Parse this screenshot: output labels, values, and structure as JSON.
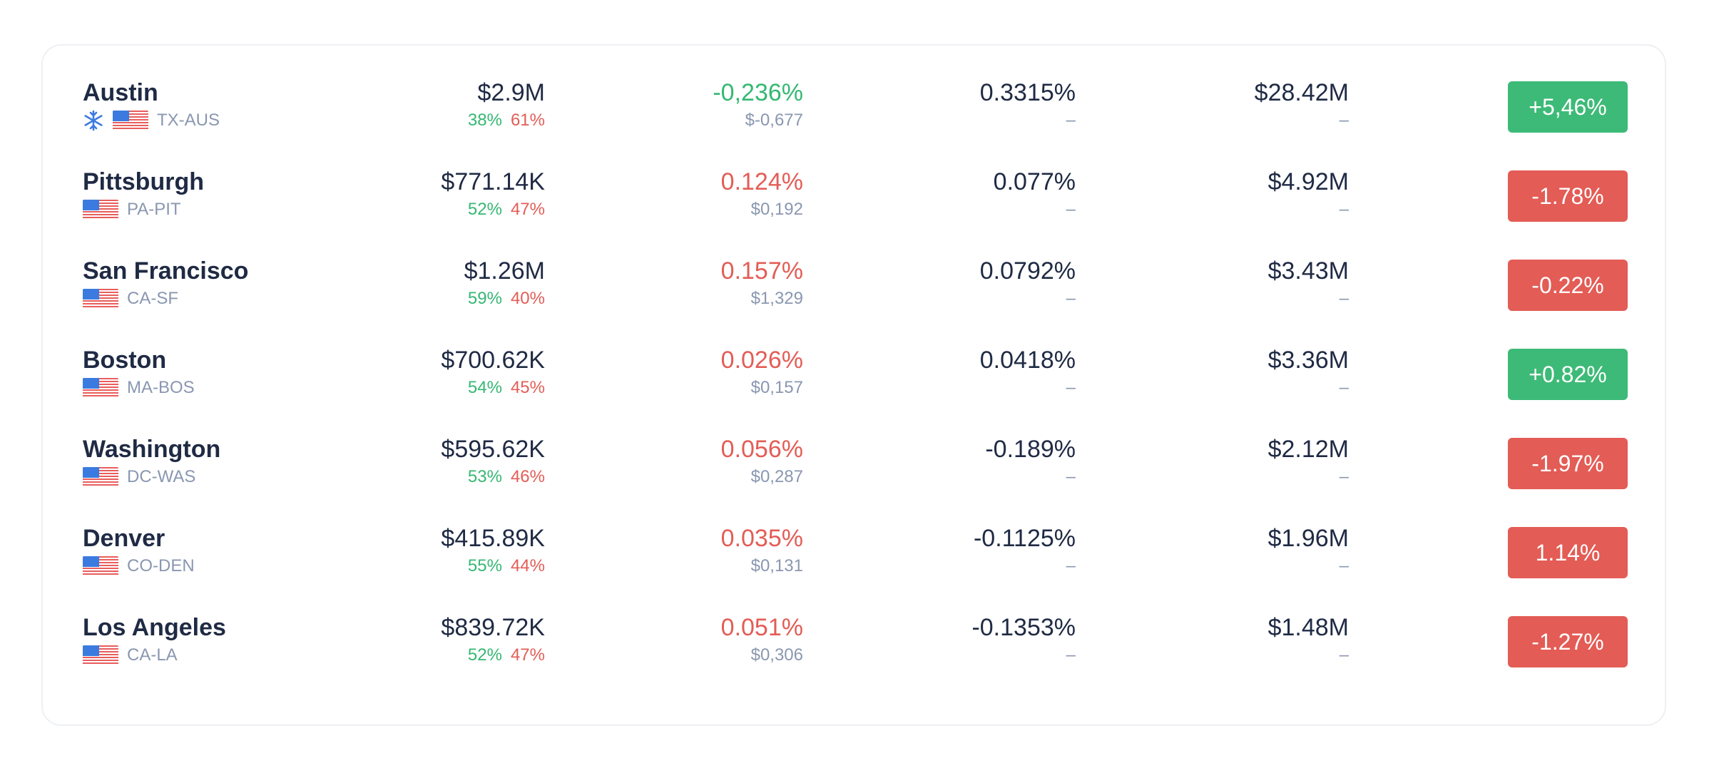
{
  "colors": {
    "up": "#3dba77",
    "down": "#e35c55",
    "text": "#1f2a44",
    "muted": "#8a97b0"
  },
  "rows": [
    {
      "city": "Austin",
      "icons": [
        "snowflake-icon",
        "us-flag-icon"
      ],
      "code": "TX-AUS",
      "volume": "$2.9M",
      "buy": "38%",
      "sell": "61%",
      "funding": "-0,236%",
      "funding_tone": "green",
      "funding_amt": "$-0,677",
      "rate": "0.3315%",
      "rate_sub": "–",
      "oi": "$28.42M",
      "oi_sub": "–",
      "change": "+5,46%",
      "change_tone": "green"
    },
    {
      "city": "Pittsburgh",
      "icons": [
        "us-flag-icon"
      ],
      "code": "PA-PIT",
      "volume": "$771.14K",
      "buy": "52%",
      "sell": "47%",
      "funding": "0.124%",
      "funding_tone": "red",
      "funding_amt": "$0,192",
      "rate": "0.077%",
      "rate_sub": "–",
      "oi": "$4.92M",
      "oi_sub": "–",
      "change": "-1.78%",
      "change_tone": "red"
    },
    {
      "city": "San Francisco",
      "icons": [
        "us-flag-icon"
      ],
      "code": "CA-SF",
      "volume": "$1.26M",
      "buy": "59%",
      "sell": "40%",
      "funding": "0.157%",
      "funding_tone": "red",
      "funding_amt": "$1,329",
      "rate": "0.0792%",
      "rate_sub": "–",
      "oi": "$3.43M",
      "oi_sub": "–",
      "change": "-0.22%",
      "change_tone": "red"
    },
    {
      "city": "Boston",
      "icons": [
        "us-flag-icon"
      ],
      "code": "MA-BOS",
      "volume": "$700.62K",
      "buy": "54%",
      "sell": "45%",
      "funding": "0.026%",
      "funding_tone": "red",
      "funding_amt": "$0,157",
      "rate": "0.0418%",
      "rate_sub": "–",
      "oi": "$3.36M",
      "oi_sub": "–",
      "change": "+0.82%",
      "change_tone": "green"
    },
    {
      "city": "Washington",
      "icons": [
        "us-flag-icon"
      ],
      "code": "DC-WAS",
      "volume": "$595.62K",
      "buy": "53%",
      "sell": "46%",
      "funding": "0.056%",
      "funding_tone": "red",
      "funding_amt": "$0,287",
      "rate": "-0.189%",
      "rate_sub": "–",
      "oi": "$2.12M",
      "oi_sub": "–",
      "change": "-1.97%",
      "change_tone": "red"
    },
    {
      "city": "Denver",
      "icons": [
        "us-flag-icon"
      ],
      "code": "CO-DEN",
      "volume": "$415.89K",
      "buy": "55%",
      "sell": "44%",
      "funding": "0.035%",
      "funding_tone": "red",
      "funding_amt": "$0,131",
      "rate": "-0.1125%",
      "rate_sub": "–",
      "oi": "$1.96M",
      "oi_sub": "–",
      "change": "1.14%",
      "change_tone": "red"
    },
    {
      "city": "Los Angeles",
      "icons": [
        "us-flag-icon"
      ],
      "code": "CA-LA",
      "volume": "$839.72K",
      "buy": "52%",
      "sell": "47%",
      "funding": "0.051%",
      "funding_tone": "red",
      "funding_amt": "$0,306",
      "rate": "-0.1353%",
      "rate_sub": "–",
      "oi": "$1.48M",
      "oi_sub": "–",
      "change": "-1.27%",
      "change_tone": "red"
    }
  ]
}
